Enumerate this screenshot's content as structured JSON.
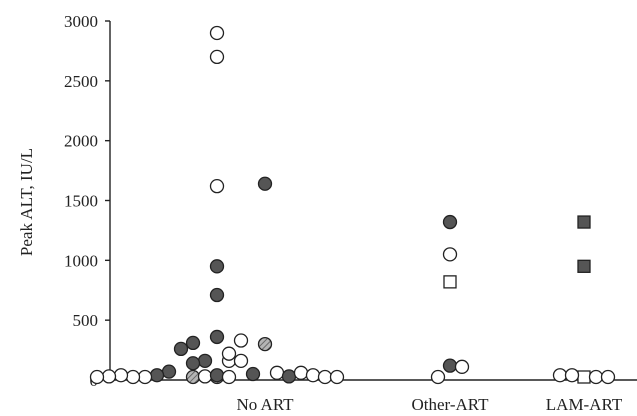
{
  "chart_data": {
    "type": "scatter",
    "title": "",
    "xlabel": "",
    "ylabel": "Peak ALT, IU/L",
    "ylim": [
      0,
      3000
    ],
    "y_ticks": [
      "0",
      "500",
      "1000",
      "1500",
      "2000",
      "2500",
      "3000"
    ],
    "categories": [
      "No ART",
      "Other-ART",
      "LAM-ART"
    ],
    "grid": false,
    "legend": "none",
    "colors": {
      "filled": "#555555",
      "hatched": "#9a9a9a",
      "stroke": "#222222",
      "open": "#ffffff"
    },
    "points": [
      {
        "category": "No ART",
        "offset": -4,
        "y": 2900,
        "marker": "circle",
        "fill": "open"
      },
      {
        "category": "No ART",
        "offset": -4,
        "y": 2700,
        "marker": "circle",
        "fill": "open"
      },
      {
        "category": "No ART",
        "offset": -4,
        "y": 1620,
        "marker": "circle",
        "fill": "open"
      },
      {
        "category": "No ART",
        "offset": 0,
        "y": 1640,
        "marker": "circle",
        "fill": "filled"
      },
      {
        "category": "No ART",
        "offset": -4,
        "y": 950,
        "marker": "circle",
        "fill": "filled"
      },
      {
        "category": "No ART",
        "offset": -4,
        "y": 710,
        "marker": "circle",
        "fill": "filled"
      },
      {
        "category": "No ART",
        "offset": -4,
        "y": 360,
        "marker": "circle",
        "fill": "filled"
      },
      {
        "category": "No ART",
        "offset": -2,
        "y": 330,
        "marker": "circle",
        "fill": "open"
      },
      {
        "category": "No ART",
        "offset": 0,
        "y": 300,
        "marker": "circle",
        "fill": "hatched"
      },
      {
        "category": "No ART",
        "offset": -6,
        "y": 310,
        "marker": "circle",
        "fill": "filled"
      },
      {
        "category": "No ART",
        "offset": -7,
        "y": 260,
        "marker": "circle",
        "fill": "filled"
      },
      {
        "category": "No ART",
        "offset": -5,
        "y": 160,
        "marker": "circle",
        "fill": "filled"
      },
      {
        "category": "No ART",
        "offset": -3,
        "y": 160,
        "marker": "circle",
        "fill": "open"
      },
      {
        "category": "No ART",
        "offset": -2,
        "y": 160,
        "marker": "circle",
        "fill": "open"
      },
      {
        "category": "No ART",
        "offset": -6,
        "y": 140,
        "marker": "circle",
        "fill": "filled"
      },
      {
        "category": "No ART",
        "offset": -3,
        "y": 220,
        "marker": "circle",
        "fill": "open"
      },
      {
        "category": "No ART",
        "offset": -8,
        "y": 70,
        "marker": "circle",
        "fill": "filled"
      },
      {
        "category": "No ART",
        "offset": -9,
        "y": 40,
        "marker": "circle",
        "fill": "filled"
      },
      {
        "category": "No ART",
        "offset": -4,
        "y": 20,
        "marker": "circle",
        "fill": "hatched"
      },
      {
        "category": "No ART",
        "offset": -6,
        "y": 20,
        "marker": "circle",
        "fill": "hatched"
      },
      {
        "category": "No ART",
        "offset": -5,
        "y": 30,
        "marker": "circle",
        "fill": "open"
      },
      {
        "category": "No ART",
        "offset": -4,
        "y": 40,
        "marker": "circle",
        "fill": "filled"
      },
      {
        "category": "No ART",
        "offset": -1,
        "y": 50,
        "marker": "circle",
        "fill": "filled"
      },
      {
        "category": "No ART",
        "offset": -3,
        "y": 20,
        "marker": "circle",
        "fill": "open"
      },
      {
        "category": "No ART",
        "offset": 1,
        "y": 60,
        "marker": "circle",
        "fill": "open"
      },
      {
        "category": "No ART",
        "offset": 2,
        "y": 30,
        "marker": "circle",
        "fill": "filled"
      },
      {
        "category": "No ART",
        "offset": 3,
        "y": 60,
        "marker": "circle",
        "fill": "open"
      },
      {
        "category": "No ART",
        "offset": 4,
        "y": 40,
        "marker": "circle",
        "fill": "open"
      },
      {
        "category": "No ART",
        "offset": 5,
        "y": 20,
        "marker": "circle",
        "fill": "open"
      },
      {
        "category": "No ART",
        "offset": 6,
        "y": 10,
        "marker": "circle",
        "fill": "open"
      },
      {
        "category": "No ART",
        "offset": -10,
        "y": 10,
        "marker": "circle",
        "fill": "open"
      },
      {
        "category": "No ART",
        "offset": -11,
        "y": 20,
        "marker": "circle",
        "fill": "open"
      },
      {
        "category": "No ART",
        "offset": -12,
        "y": 40,
        "marker": "circle",
        "fill": "open"
      },
      {
        "category": "No ART",
        "offset": -13,
        "y": 30,
        "marker": "circle",
        "fill": "open"
      },
      {
        "category": "No ART",
        "offset": -14,
        "y": 20,
        "marker": "circle",
        "fill": "open"
      },
      {
        "category": "Other-ART",
        "offset": 0,
        "y": 1320,
        "marker": "circle",
        "fill": "filled"
      },
      {
        "category": "Other-ART",
        "offset": 0,
        "y": 1050,
        "marker": "circle",
        "fill": "open"
      },
      {
        "category": "Other-ART",
        "offset": 0,
        "y": 820,
        "marker": "square",
        "fill": "open"
      },
      {
        "category": "Other-ART",
        "offset": 0,
        "y": 120,
        "marker": "circle",
        "fill": "filled"
      },
      {
        "category": "Other-ART",
        "offset": 1,
        "y": 110,
        "marker": "circle",
        "fill": "open"
      },
      {
        "category": "Other-ART",
        "offset": -1,
        "y": 10,
        "marker": "circle",
        "fill": "open"
      },
      {
        "category": "LAM-ART",
        "offset": 0,
        "y": 1320,
        "marker": "square",
        "fill": "filled"
      },
      {
        "category": "LAM-ART",
        "offset": 0,
        "y": 950,
        "marker": "square",
        "fill": "filled"
      },
      {
        "category": "LAM-ART",
        "offset": 0,
        "y": 20,
        "marker": "square",
        "fill": "open"
      },
      {
        "category": "LAM-ART",
        "offset": -2,
        "y": 40,
        "marker": "circle",
        "fill": "open"
      },
      {
        "category": "LAM-ART",
        "offset": -1,
        "y": 40,
        "marker": "circle",
        "fill": "open"
      },
      {
        "category": "LAM-ART",
        "offset": 1,
        "y": 10,
        "marker": "circle",
        "fill": "open"
      },
      {
        "category": "LAM-ART",
        "offset": 2,
        "y": 10,
        "marker": "circle",
        "fill": "open"
      }
    ]
  }
}
